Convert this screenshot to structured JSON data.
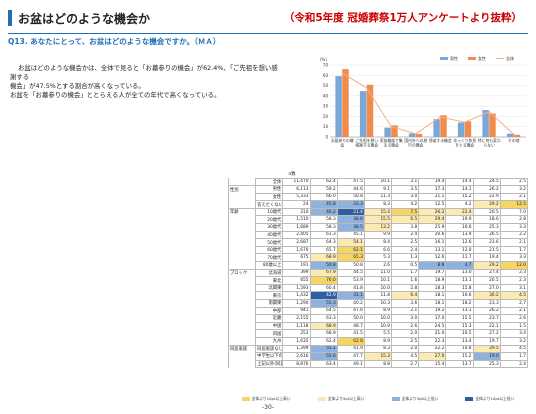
{
  "header": {
    "title": "お盆はどのような機会か",
    "source": "（令和5年度 冠婚葬祭1万人アンケートより抜粋）",
    "question": "Q13. あなたにとって、お盆はどのような機会ですか。（ＭＡ）"
  },
  "summary": [
    "お盆はどのような機会かは、全体で見ると「お墓参りの機会」が62.4%、「ご先祖を想い感謝する",
    "機会」が47.5%とする割合が高くなっている。",
    "お盆を「お墓参りの機会」ととらえる人が全ての年代で高くなっている。"
  ],
  "colors": {
    "male": "#7aa6d8",
    "female": "#f28a4a",
    "total": "#f4b183",
    "dark_blue": "#2e5ea8",
    "light_blue": "#8eb2dd",
    "yellow": "#f7d562",
    "light_yellow": "#fbeab2"
  },
  "chart_data": {
    "type": "bar",
    "categories": [
      "お墓参りの機会",
      "ご先祖を想い感謝する機会",
      "家族親族で集まる機会",
      "国内外への旅行の機会",
      "帰省する機会",
      "ゆっくり休息をとる機会",
      "特に何も変わらない",
      "その他"
    ],
    "series": [
      {
        "name": "男性",
        "values": [
          59.2,
          44.6,
          9.1,
          3.5,
          17.3,
          14.1,
          26.2,
          3.2
        ],
        "kind": "bar"
      },
      {
        "name": "女性",
        "values": [
          66.0,
          50.8,
          11.3,
          3.0,
          21.1,
          15.2,
          22.9,
          2.1
        ],
        "kind": "bar"
      },
      {
        "name": "全体",
        "values": [
          62.4,
          47.5,
          10.1,
          3.1,
          19.4,
          14.4,
          24.5,
          2.5
        ],
        "kind": "line"
      }
    ],
    "ylim": [
      0,
      70
    ],
    "yticks": [
      "70",
      "60",
      "50",
      "40",
      "30",
      "20",
      "10",
      "0"
    ],
    "ylabel": "(%)"
  },
  "table": {
    "n_label": "n数",
    "rows": [
      {
        "group": "",
        "label": "全体",
        "n": "11,470",
        "vals": [
          "62.4",
          "47.5",
          "10.1",
          "3.1",
          "19.4",
          "14.4",
          "24.5",
          "2.5"
        ]
      },
      {
        "group": "性別",
        "label": "男性",
        "n": "6,113",
        "vals": [
          "59.2",
          "44.6",
          "9.1",
          "3.5",
          "17.3",
          "14.1",
          "26.2",
          "3.2"
        ]
      },
      {
        "group": "",
        "label": "女性",
        "n": "5,333",
        "vals": [
          "66.0",
          "50.8",
          "11.3",
          "3.0",
          "21.1",
          "15.2",
          "22.9",
          "2.1"
        ]
      },
      {
        "group": "",
        "label": "答えたくない",
        "n": "24",
        "vals": [
          "45.8",
          "33.3",
          "8.3",
          "4.2",
          "12.5",
          "4.2",
          "29.2",
          "12.5"
        ]
      },
      {
        "group": "年齢",
        "label": "10歳代",
        "n": "210",
        "vals": [
          "46.2",
          "21.4",
          "15.4",
          "7.5",
          "26.2",
          "22.4",
          "20.5",
          "7.0"
        ]
      },
      {
        "group": "",
        "label": "20歳代",
        "n": "1,510",
        "vals": [
          "58.3",
          "38.6",
          "15.5",
          "6.5",
          "29.4",
          "19.9",
          "18.6",
          "2.8"
        ]
      },
      {
        "group": "",
        "label": "30歳代",
        "n": "1,689",
        "vals": [
          "58.3",
          "38.5",
          "13.2",
          "3.8",
          "25.9",
          "16.0",
          "25.3",
          "3.3"
        ]
      },
      {
        "group": "",
        "label": "40歳代",
        "n": "2,405",
        "vals": [
          "61.3",
          "45.1",
          "9.9",
          "2.4",
          "20.6",
          "13.9",
          "26.5",
          "2.2"
        ]
      },
      {
        "group": "",
        "label": "50歳代",
        "n": "2,687",
        "vals": [
          "64.3",
          "54.1",
          "8.4",
          "2.5",
          "16.1",
          "12.6",
          "23.6",
          "2.1"
        ]
      },
      {
        "group": "",
        "label": "60歳代",
        "n": "1,670",
        "n_full": "1,670",
        "vals": [
          "65.7",
          "62.1",
          "6.6",
          "2.4",
          "13.1",
          "12.0",
          "21.5",
          "1.7"
        ]
      },
      {
        "group": "",
        "label": "70歳代",
        "n": "675",
        "vals": [
          "68.9",
          "65.3",
          "5.3",
          "1.3",
          "12.6",
          "11.7",
          "19.4",
          "3.3"
        ]
      },
      {
        "group": "",
        "label": "80歳以上",
        "n": "191",
        "vals": [
          "50.8",
          "50.8",
          "2.6",
          "0.5",
          "8.9",
          "4.7",
          "29.2",
          "12.0"
        ]
      },
      {
        "group": "ブロック",
        "label": "北海道",
        "n": "399",
        "vals": [
          "67.9",
          "44.5",
          "11.0",
          "1.7",
          "19.7",
          "13.0",
          "27.4",
          "2.3"
        ]
      },
      {
        "group": "",
        "label": "東北",
        "n": "655",
        "vals": [
          "76.0",
          "53.9",
          "10.1",
          "1.6",
          "18.9",
          "13.1",
          "20.5",
          "2.3"
        ]
      },
      {
        "group": "",
        "label": "北関東",
        "n": "1,593",
        "vals": [
          "60.4",
          "41.8",
          "10.0",
          "2.8",
          "18.3",
          "15.8",
          "27.0",
          "3.1"
        ]
      },
      {
        "group": "",
        "label": "東京",
        "n": "1,432",
        "vals": [
          "42.9",
          "31.1",
          "11.8",
          "6.4",
          "18.1",
          "16.6",
          "30.2",
          "4.5"
        ]
      },
      {
        "group": "",
        "label": "南関東",
        "n": "1,290",
        "vals": [
          "55.3",
          "40.2",
          "10.3",
          "3.6",
          "18.1",
          "18.2",
          "23.3",
          "2.7"
        ]
      },
      {
        "group": "",
        "label": "中部",
        "n": "941",
        "vals": [
          "64.5",
          "47.6",
          "8.9",
          "2.1",
          "19.2",
          "13.1",
          "26.2",
          "2.1"
        ]
      },
      {
        "group": "",
        "label": "近畿",
        "n": "2,155",
        "vals": [
          "63.3",
          "50.0",
          "10.0",
          "3.0",
          "17.0",
          "15.5",
          "23.7",
          "2.6"
        ]
      },
      {
        "group": "",
        "label": "中国",
        "n": "1,118",
        "vals": [
          "68.9",
          "48.7",
          "10.9",
          "2.6",
          "24.5",
          "15.3",
          "22.1",
          "1.5"
        ]
      },
      {
        "group": "",
        "label": "四国",
        "n": "253",
        "vals": [
          "68.9",
          "41.5",
          "5.5",
          "2.0",
          "21.0",
          "10.5",
          "27.2",
          "3.4"
        ]
      },
      {
        "group": "",
        "label": "九州",
        "n": "1,635",
        "vals": [
          "62.4",
          "62.8",
          "8.9",
          "2.5",
          "22.3",
          "13.4",
          "19.7",
          "3.2"
        ]
      },
      {
        "group": "同居家族",
        "label": "同居家族なし",
        "n": "1,399",
        "vals": [
          "55.1",
          "41.9",
          "8.3",
          "2.0",
          "22.2",
          "14.8",
          "29.5",
          "4.5"
        ]
      },
      {
        "group": "",
        "label": "中学生以下の子ども(孫)と同居",
        "n": "2,616",
        "vals": [
          "55.6",
          "47.7",
          "15.3",
          "4.5",
          "27.0",
          "15.2",
          "19.0",
          "1.7"
        ]
      },
      {
        "group": "",
        "label": "上記以外(同居家族あり)",
        "n": "8,876",
        "vals": [
          "63.4",
          "49.1",
          "8.8",
          "2.7",
          "15.4",
          "13.7",
          "25.3",
          "2.4"
        ]
      }
    ],
    "highlight": {
      "0": {},
      "3": {
        "0": "b",
        "1": "b",
        "6": "d",
        "7": "c"
      },
      "4": {
        "0": "b",
        "1": "a",
        "2": "d",
        "3": "c",
        "4": "d",
        "5": "d"
      },
      "5": {
        "1": "b",
        "2": "d",
        "3": "d",
        "4": "d"
      },
      "6": {
        "1": "b",
        "2": "d"
      },
      "8": {
        "1": "d"
      },
      "9": {
        "1": "c"
      },
      "10": {
        "0": "d",
        "1": "c"
      },
      "11": {
        "0": "b",
        "4": "b",
        "5": "b",
        "6": "d",
        "7": "c"
      },
      "12": {
        "0": "d"
      },
      "13": {
        "0": "c"
      },
      "15": {
        "0": "a",
        "1": "b",
        "3": "d",
        "6": "d",
        "7": "d"
      },
      "16": {
        "0": "b"
      },
      "19": {
        "0": "d"
      },
      "21": {
        "1": "c"
      },
      "22": {
        "0": "b",
        "6": "d"
      },
      "23": {
        "0": "b",
        "2": "d",
        "4": "d",
        "6": "b"
      }
    }
  },
  "legend2": [
    "全体より10pt以上高い",
    "全体より5pt以上高い",
    "全体より5pt以上低い",
    "全体より10pt以上低い"
  ],
  "page_no": "-30-"
}
